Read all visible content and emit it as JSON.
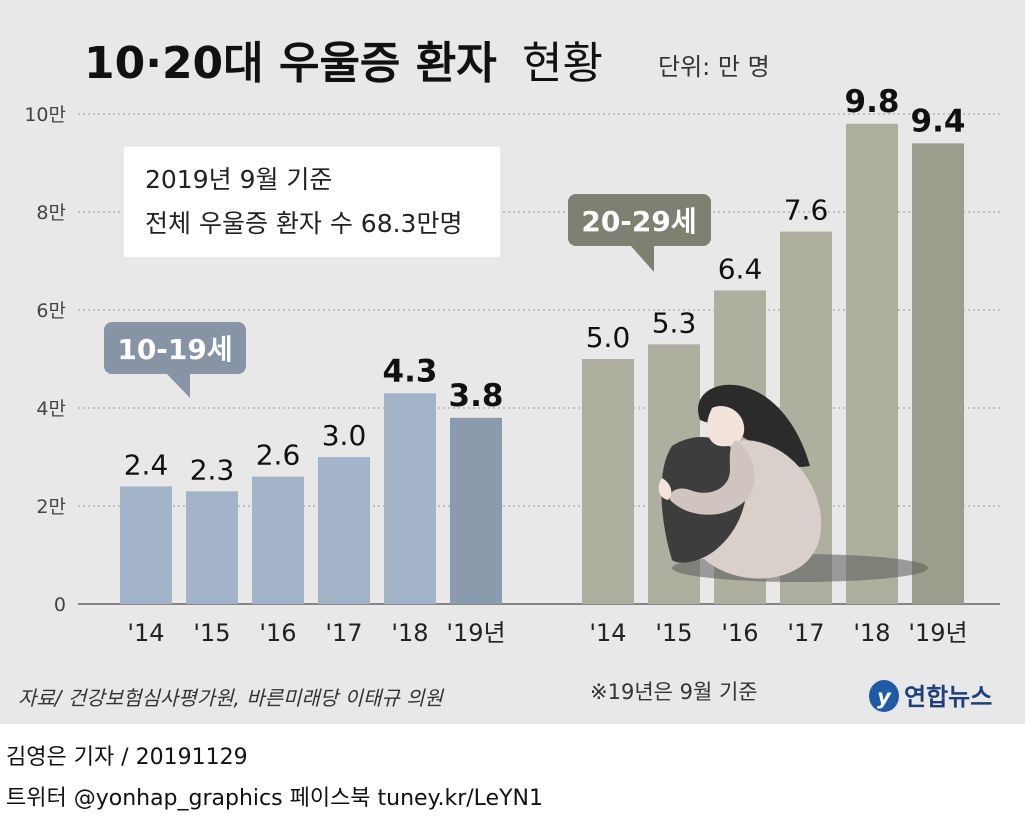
{
  "header": {
    "title_bold": "10·20대 우울증 환자",
    "title_light": "현황",
    "unit": "단위: 만 명"
  },
  "note_box": {
    "line1": "2019년 9월 기준",
    "line2": "전체 우울증 환자 수 68.3만명"
  },
  "footer": {
    "source": "자료/ 건강보험심사평가원, 바른미래당 이태규 의원",
    "footnote": "※19년은 9월 기준",
    "logo_text": "연합뉴스",
    "byline": "김영은 기자 / 20191129",
    "social": "트위터 @yonhap_graphics  페이스북 tuney.kr/LeYN1"
  },
  "colors": {
    "background": "#e8e8e8",
    "teen_bar": "#a3b4c9",
    "teen_bar_highlight": "#8b9bae",
    "teen_label_bg": "#8794a6",
    "twenties_bar": "#aeaf9e",
    "twenties_bar_highlight": "#9c9d8c",
    "twenties_label_bg": "#7f7f72",
    "grid": "#999999"
  },
  "chart_data": {
    "type": "bar",
    "ylim": [
      0,
      10
    ],
    "grid": true,
    "y_ticks": [
      {
        "value": 0,
        "label": "0"
      },
      {
        "value": 2,
        "label": "2만"
      },
      {
        "value": 4,
        "label": "4만"
      },
      {
        "value": 6,
        "label": "6만"
      },
      {
        "value": 8,
        "label": "8만"
      },
      {
        "value": 10,
        "label": "10만"
      }
    ],
    "categories": [
      "'14",
      "'15",
      "'16",
      "'17",
      "'18",
      "'19년"
    ],
    "series": [
      {
        "name": "10-19세",
        "values": [
          2.4,
          2.3,
          2.6,
          3.0,
          4.3,
          3.8
        ]
      },
      {
        "name": "20-29세",
        "values": [
          5.0,
          5.3,
          6.4,
          7.6,
          9.8,
          9.4
        ]
      }
    ],
    "data_labels": [
      [
        "2.4",
        "2.3",
        "2.6",
        "3.0",
        "4.3",
        "3.8"
      ],
      [
        "5.0",
        "5.3",
        "6.4",
        "7.6",
        "9.8",
        "9.4"
      ]
    ]
  }
}
